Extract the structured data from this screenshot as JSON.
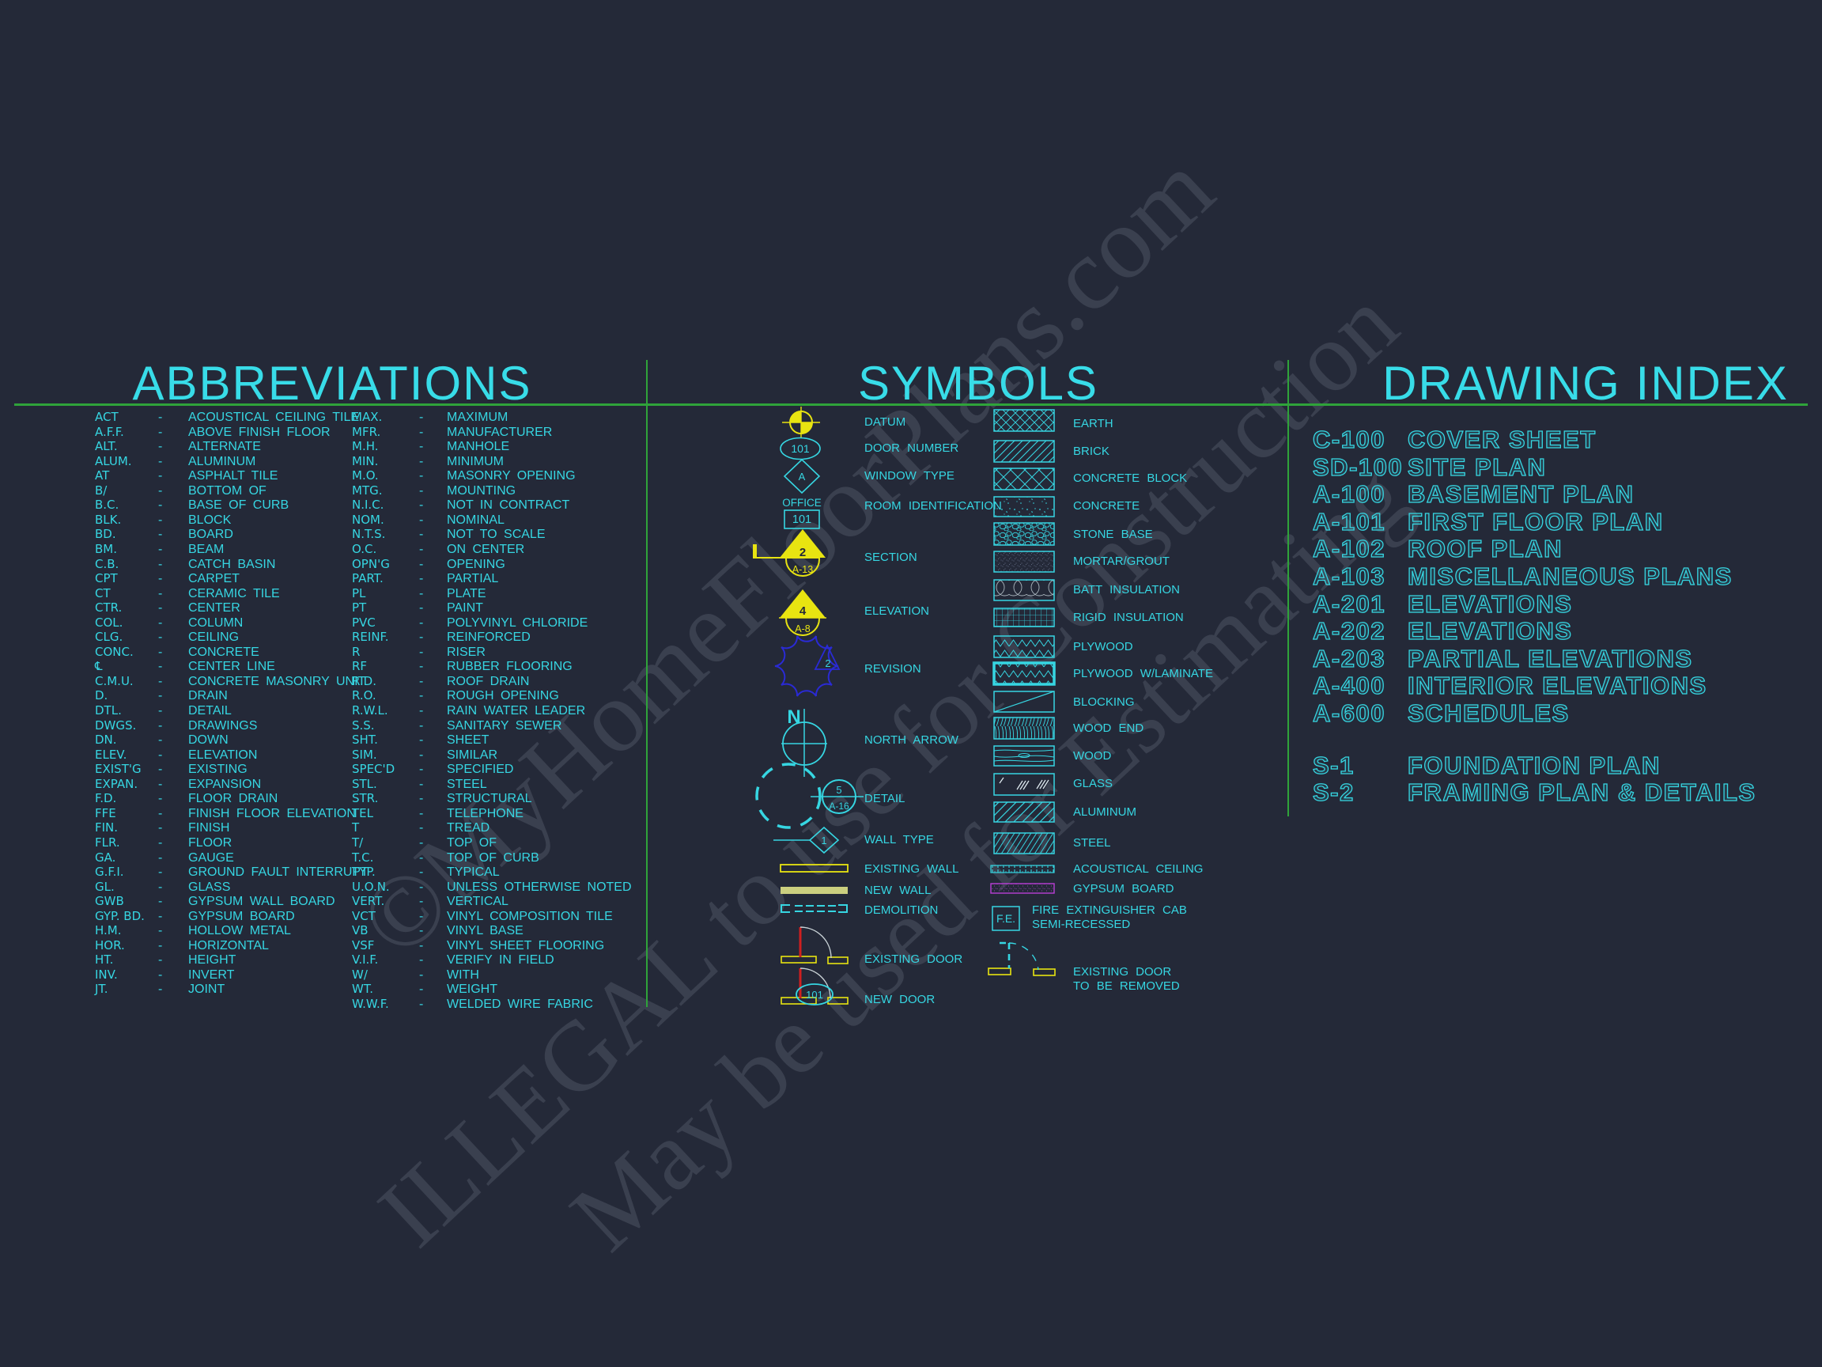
{
  "titles": {
    "abbreviations": "ABBREVIATIONS",
    "symbols": "SYMBOLS",
    "drawing_index": "DRAWING INDEX"
  },
  "watermark": {
    "line1": "©MyHomeFloorPlans.com",
    "line2": "ILLEGAL to use for Construction",
    "line3": "May be used for Estimating"
  },
  "colors": {
    "background": "#242938",
    "cyan_text": "#36d6e2",
    "green_line": "#2fa33a",
    "yellow": "#e8e411",
    "red": "#cf1f1f",
    "revision_blue": "#2a2ad4",
    "gypsum_magenta": "#b93fd6",
    "door_arc_gray": "#c9d2d6"
  },
  "abbreviations": {
    "separator": "-",
    "col1": [
      {
        "abbr": "ACT",
        "def": "ACOUSTICAL CEILING TILE"
      },
      {
        "abbr": "A.F.F.",
        "def": "ABOVE FINISH FLOOR"
      },
      {
        "abbr": "ALT.",
        "def": "ALTERNATE"
      },
      {
        "abbr": "ALUM.",
        "def": "ALUMINUM"
      },
      {
        "abbr": "AT",
        "def": "ASPHALT TILE"
      },
      {
        "abbr": "B/",
        "def": "BOTTOM OF"
      },
      {
        "abbr": "B.C.",
        "def": "BASE OF CURB"
      },
      {
        "abbr": "BLK.",
        "def": "BLOCK"
      },
      {
        "abbr": "BD.",
        "def": "BOARD"
      },
      {
        "abbr": "BM.",
        "def": "BEAM"
      },
      {
        "abbr": "C.B.",
        "def": "CATCH BASIN"
      },
      {
        "abbr": "CPT",
        "def": "CARPET"
      },
      {
        "abbr": "CT",
        "def": "CERAMIC TILE"
      },
      {
        "abbr": "CTR.",
        "def": "CENTER"
      },
      {
        "abbr": "COL.",
        "def": "COLUMN"
      },
      {
        "abbr": "CLG.",
        "def": "CEILING"
      },
      {
        "abbr": "CONC.",
        "def": "CONCRETE"
      },
      {
        "abbr": "℄",
        "def": "CENTER LINE"
      },
      {
        "abbr": "C.M.U.",
        "def": "CONCRETE MASONRY UNIT"
      },
      {
        "abbr": "D.",
        "def": "DRAIN"
      },
      {
        "abbr": "DTL.",
        "def": "DETAIL"
      },
      {
        "abbr": "DWGS.",
        "def": "DRAWINGS"
      },
      {
        "abbr": "DN.",
        "def": "DOWN"
      },
      {
        "abbr": "ELEV.",
        "def": "ELEVATION"
      },
      {
        "abbr": "EXIST'G",
        "def": "EXISTING"
      },
      {
        "abbr": "EXPAN.",
        "def": "EXPANSION"
      },
      {
        "abbr": "F.D.",
        "def": "FLOOR DRAIN"
      },
      {
        "abbr": "FFE",
        "def": "FINISH FLOOR ELEVATION"
      },
      {
        "abbr": "FIN.",
        "def": "FINISH"
      },
      {
        "abbr": "FLR.",
        "def": "FLOOR"
      },
      {
        "abbr": "GA.",
        "def": "GAUGE"
      },
      {
        "abbr": "G.F.I.",
        "def": "GROUND FAULT INTERRUPT"
      },
      {
        "abbr": "GL.",
        "def": "GLASS"
      },
      {
        "abbr": "GWB",
        "def": "GYPSUM WALL BOARD"
      },
      {
        "abbr": "GYP. BD.",
        "def": "GYPSUM BOARD"
      },
      {
        "abbr": "H.M.",
        "def": "HOLLOW METAL"
      },
      {
        "abbr": "HOR.",
        "def": "HORIZONTAL"
      },
      {
        "abbr": "HT.",
        "def": "HEIGHT"
      },
      {
        "abbr": "INV.",
        "def": "INVERT"
      },
      {
        "abbr": "JT.",
        "def": "JOINT"
      }
    ],
    "col2": [
      {
        "abbr": "MAX.",
        "def": "MAXIMUM"
      },
      {
        "abbr": "MFR.",
        "def": "MANUFACTURER"
      },
      {
        "abbr": "M.H.",
        "def": "MANHOLE"
      },
      {
        "abbr": "MIN.",
        "def": "MINIMUM"
      },
      {
        "abbr": "M.O.",
        "def": "MASONRY OPENING"
      },
      {
        "abbr": "MTG.",
        "def": "MOUNTING"
      },
      {
        "abbr": "N.I.C.",
        "def": "NOT IN CONTRACT"
      },
      {
        "abbr": "NOM.",
        "def": "NOMINAL"
      },
      {
        "abbr": "N.T.S.",
        "def": "NOT TO SCALE"
      },
      {
        "abbr": "O.C.",
        "def": "ON CENTER"
      },
      {
        "abbr": "OPN'G",
        "def": "OPENING"
      },
      {
        "abbr": "PART.",
        "def": "PARTIAL"
      },
      {
        "abbr": "PL",
        "def": "PLATE"
      },
      {
        "abbr": "PT",
        "def": "PAINT"
      },
      {
        "abbr": "PVC",
        "def": "POLYVINYL CHLORIDE"
      },
      {
        "abbr": "REINF.",
        "def": "REINFORCED"
      },
      {
        "abbr": "R",
        "def": "RISER"
      },
      {
        "abbr": "RF",
        "def": "RUBBER FLOORING"
      },
      {
        "abbr": "R.D.",
        "def": "ROOF DRAIN"
      },
      {
        "abbr": "R.O.",
        "def": "ROUGH OPENING"
      },
      {
        "abbr": "R.W.L.",
        "def": "RAIN WATER LEADER"
      },
      {
        "abbr": "S.S.",
        "def": "SANITARY SEWER"
      },
      {
        "abbr": "SHT.",
        "def": "SHEET"
      },
      {
        "abbr": "SIM.",
        "def": "SIMILAR"
      },
      {
        "abbr": "SPEC'D",
        "def": "SPECIFIED"
      },
      {
        "abbr": "STL.",
        "def": "STEEL"
      },
      {
        "abbr": "STR.",
        "def": "STRUCTURAL"
      },
      {
        "abbr": "TEL",
        "def": "TELEPHONE"
      },
      {
        "abbr": "T",
        "def": "TREAD"
      },
      {
        "abbr": "T/",
        "def": "TOP OF"
      },
      {
        "abbr": "T.C.",
        "def": "TOP OF CURB"
      },
      {
        "abbr": "TYP.",
        "def": "TYPICAL"
      },
      {
        "abbr": "U.O.N.",
        "def": "UNLESS OTHERWISE NOTED"
      },
      {
        "abbr": "VERT.",
        "def": "VERTICAL"
      },
      {
        "abbr": "VCT",
        "def": "VINYL COMPOSITION TILE"
      },
      {
        "abbr": "VB",
        "def": "VINYL BASE"
      },
      {
        "abbr": "VSF",
        "def": "VINYL SHEET FLOORING"
      },
      {
        "abbr": "V.I.F.",
        "def": "VERIFY IN FIELD"
      },
      {
        "abbr": "W/",
        "def": "WITH"
      },
      {
        "abbr": "WT.",
        "def": "WEIGHT"
      },
      {
        "abbr": "W.W.F.",
        "def": "WELDED WIRE FABRIC"
      }
    ]
  },
  "symbols": {
    "left": [
      {
        "label": "DATUM",
        "icon": "datum"
      },
      {
        "label": "DOOR NUMBER",
        "icon": "door-number"
      },
      {
        "label": "WINDOW TYPE",
        "icon": "window-type"
      },
      {
        "label": "ROOM IDENTIFICATION",
        "icon": "room-identification"
      },
      {
        "label": "SECTION",
        "icon": "section"
      },
      {
        "label": "ELEVATION",
        "icon": "elevation"
      },
      {
        "label": "REVISION",
        "icon": "revision"
      },
      {
        "label": "NORTH ARROW",
        "icon": "north-arrow"
      },
      {
        "label": "DETAIL",
        "icon": "detail"
      },
      {
        "label": "WALL TYPE",
        "icon": "wall-type"
      },
      {
        "label": "EXISTING WALL",
        "icon": "existing-wall"
      },
      {
        "label": "NEW WALL",
        "icon": "new-wall"
      },
      {
        "label": "DEMOLITION",
        "icon": "demolition"
      },
      {
        "label": "EXISTING DOOR",
        "icon": "existing-door"
      },
      {
        "label": "NEW DOOR",
        "icon": "new-door"
      }
    ],
    "right": [
      {
        "label": "EARTH",
        "pattern": "earth"
      },
      {
        "label": "BRICK",
        "pattern": "brick"
      },
      {
        "label": "CONCRETE BLOCK",
        "pattern": "concrete-block"
      },
      {
        "label": "CONCRETE",
        "pattern": "concrete"
      },
      {
        "label": "STONE BASE",
        "pattern": "stone-base"
      },
      {
        "label": "MORTAR/GROUT",
        "pattern": "mortar-grout"
      },
      {
        "label": "BATT INSULATION",
        "pattern": "batt-insulation"
      },
      {
        "label": "RIGID INSULATION",
        "pattern": "rigid-insulation"
      },
      {
        "label": "PLYWOOD",
        "pattern": "plywood"
      },
      {
        "label": "PLYWOOD W/LAMINATE",
        "pattern": "plywood-laminate"
      },
      {
        "label": "BLOCKING",
        "pattern": "blocking"
      },
      {
        "label": "WOOD END",
        "pattern": "wood-end"
      },
      {
        "label": "WOOD",
        "pattern": "wood"
      },
      {
        "label": "GLASS",
        "pattern": "glass"
      },
      {
        "label": "ALUMINUM",
        "pattern": "aluminum"
      },
      {
        "label": "STEEL",
        "pattern": "steel"
      },
      {
        "label": "ACOUSTICAL CEILING",
        "pattern": "acoustical-ceiling"
      },
      {
        "label": "GYPSUM BOARD",
        "pattern": "gypsum-board"
      },
      {
        "label": "FIRE EXTINGUISHER CAB",
        "label2": "SEMI-RECESSED",
        "pattern": "fire-extinguisher"
      },
      {
        "label": "EXISTING DOOR",
        "label2": "TO BE REMOVED",
        "pattern": "existing-door-removed"
      }
    ],
    "icon_texts": {
      "door_number": "101",
      "window_type": "A",
      "room_name": "OFFICE",
      "room_number": "101",
      "section_number": "2",
      "section_sheet": "A-13",
      "elevation_number": "4",
      "elevation_sheet": "A-8",
      "revision_number": "2",
      "north_letter": "N",
      "detail_number": "5",
      "detail_sheet": "A-16",
      "wall_type_number": "1",
      "new_door_number": "101",
      "fire_extinguisher": "F.E."
    }
  },
  "drawing_index": {
    "rows": [
      {
        "code": "C-100",
        "title": "COVER SHEET",
        "group": "architectural"
      },
      {
        "code": "SD-100",
        "title": "SITE PLAN",
        "group": "architectural"
      },
      {
        "code": "A-100",
        "title": "BASEMENT PLAN",
        "group": "architectural"
      },
      {
        "code": "A-101",
        "title": "FIRST FLOOR PLAN",
        "group": "architectural"
      },
      {
        "code": "A-102",
        "title": "ROOF PLAN",
        "group": "architectural"
      },
      {
        "code": "A-103",
        "title": "MISCELLANEOUS PLANS",
        "group": "architectural"
      },
      {
        "code": "A-201",
        "title": "ELEVATIONS",
        "group": "architectural"
      },
      {
        "code": "A-202",
        "title": "ELEVATIONS",
        "group": "architectural"
      },
      {
        "code": "A-203",
        "title": "PARTIAL ELEVATIONS",
        "group": "architectural"
      },
      {
        "code": "A-400",
        "title": "INTERIOR ELEVATIONS",
        "group": "architectural"
      },
      {
        "code": "A-600",
        "title": "SCHEDULES",
        "group": "architectural"
      },
      {
        "code": "S-1",
        "title": "FOUNDATION PLAN",
        "group": "structural"
      },
      {
        "code": "S-2",
        "title": "FRAMING PLAN & DETAILS",
        "group": "structural"
      }
    ]
  }
}
